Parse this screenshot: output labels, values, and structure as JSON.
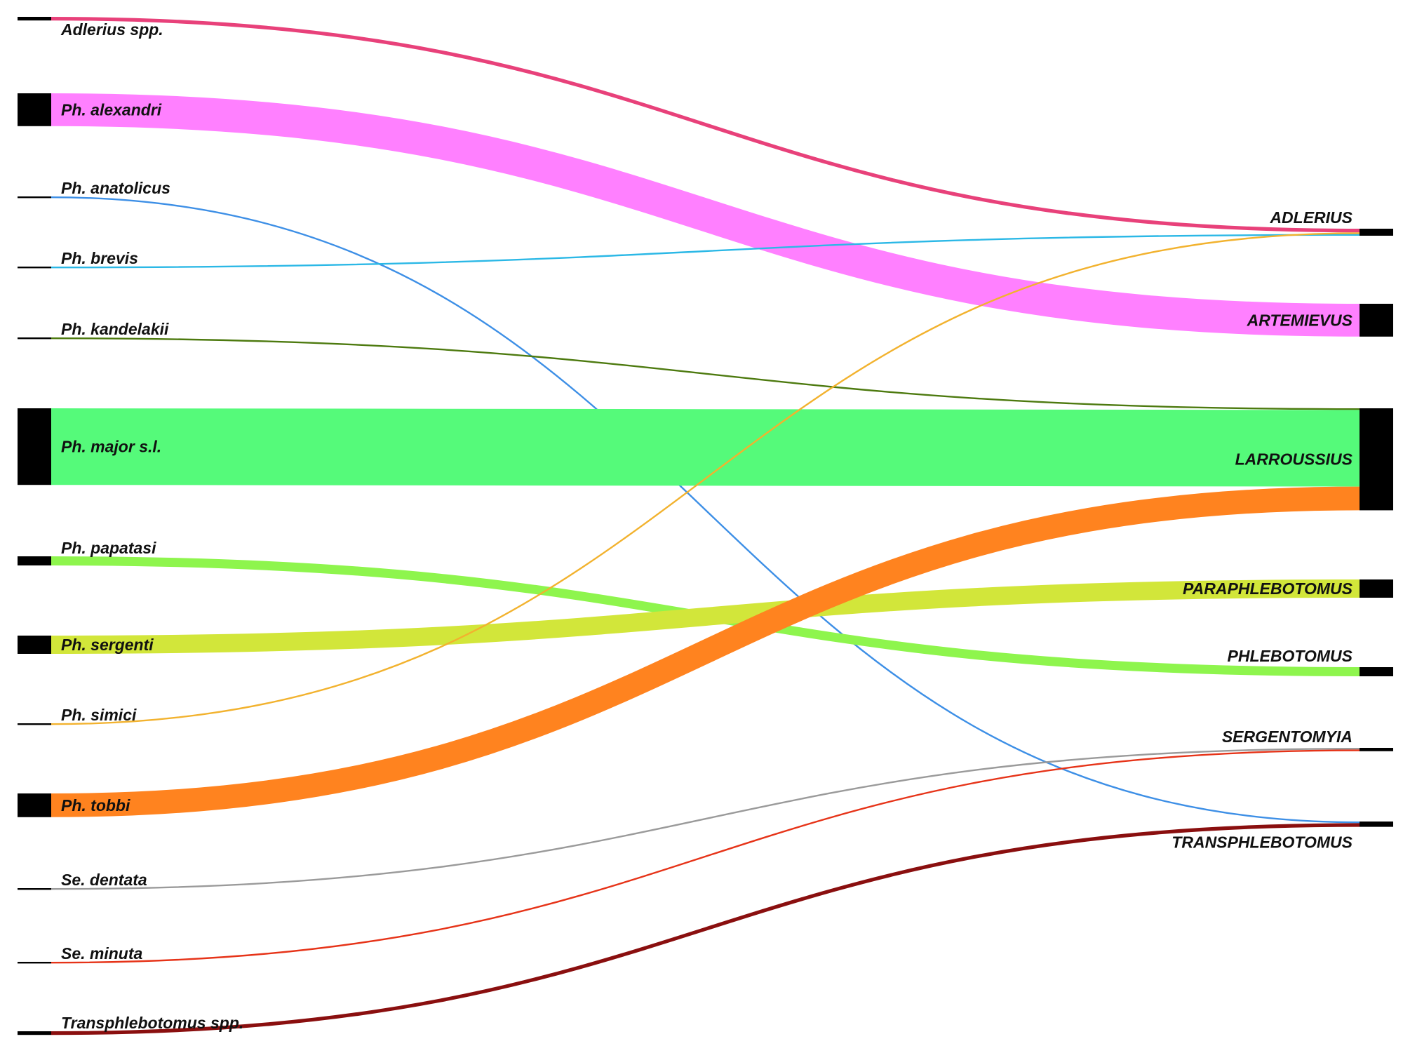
{
  "diagram": {
    "type": "sankey",
    "left_nodes": [
      {
        "id": "adlerius-spp",
        "label": "Adlerius spp.",
        "color": "#e8417a"
      },
      {
        "id": "ph-alexandri",
        "label": "Ph. alexandri",
        "color": "#ff80ff"
      },
      {
        "id": "ph-anatolicus",
        "label": "Ph. anatolicus",
        "color": "#3d8fe6"
      },
      {
        "id": "ph-brevis",
        "label": "Ph. brevis",
        "color": "#2bb8e6"
      },
      {
        "id": "ph-kandelakii",
        "label": "Ph. kandelakii",
        "color": "#4d7a0f"
      },
      {
        "id": "ph-major",
        "label": "Ph. major s.l.",
        "color": "#55fa7a"
      },
      {
        "id": "ph-papatasi",
        "label": "Ph. papatasi",
        "color": "#8ef54d"
      },
      {
        "id": "ph-sergenti",
        "label": "Ph. sergenti",
        "color": "#d2e63a"
      },
      {
        "id": "ph-simici",
        "label": "Ph. simici",
        "color": "#f2b22e"
      },
      {
        "id": "ph-tobbi",
        "label": "Ph. tobbi",
        "color": "#ff831f"
      },
      {
        "id": "se-dentata",
        "label": "Se. dentata",
        "color": "#9a9a9a"
      },
      {
        "id": "se-minuta",
        "label": "Se. minuta",
        "color": "#e63318"
      },
      {
        "id": "transphlebotomus-spp",
        "label": "Transphlebotomus spp.",
        "color": "#8a0f0f"
      }
    ],
    "right_nodes": [
      {
        "id": "adlerius",
        "label": "ADLERIUS"
      },
      {
        "id": "artemievus",
        "label": "ARTEMIEVUS"
      },
      {
        "id": "larroussius",
        "label": "LARROUSSIUS"
      },
      {
        "id": "paraphlebotomus",
        "label": "PARAPHLEBOTOMUS"
      },
      {
        "id": "phlebotomus",
        "label": "PHLEBOTOMUS"
      },
      {
        "id": "sergentomyia",
        "label": "SERGENTOMYIA"
      },
      {
        "id": "transphlebotomus",
        "label": "TRANSPHLEBOTOMUS"
      }
    ],
    "links": [
      {
        "source": "adlerius-spp",
        "target": "adlerius",
        "value": 1
      },
      {
        "source": "ph-alexandri",
        "target": "artemievus",
        "value": 9
      },
      {
        "source": "ph-anatolicus",
        "target": "transphlebotomus",
        "value": 0.2
      },
      {
        "source": "ph-brevis",
        "target": "adlerius",
        "value": 0.2
      },
      {
        "source": "ph-kandelakii",
        "target": "larroussius",
        "value": 0.2
      },
      {
        "source": "ph-major",
        "target": "larroussius",
        "value": 21
      },
      {
        "source": "ph-papatasi",
        "target": "phlebotomus",
        "value": 2.5
      },
      {
        "source": "ph-sergenti",
        "target": "paraphlebotomus",
        "value": 5
      },
      {
        "source": "ph-simici",
        "target": "adlerius",
        "value": 0.2
      },
      {
        "source": "ph-tobbi",
        "target": "larroussius",
        "value": 6.5
      },
      {
        "source": "se-dentata",
        "target": "sergentomyia",
        "value": 0.4
      },
      {
        "source": "se-minuta",
        "target": "sergentomyia",
        "value": 0.4
      },
      {
        "source": "transphlebotomus-spp",
        "target": "transphlebotomus",
        "value": 1
      }
    ]
  }
}
